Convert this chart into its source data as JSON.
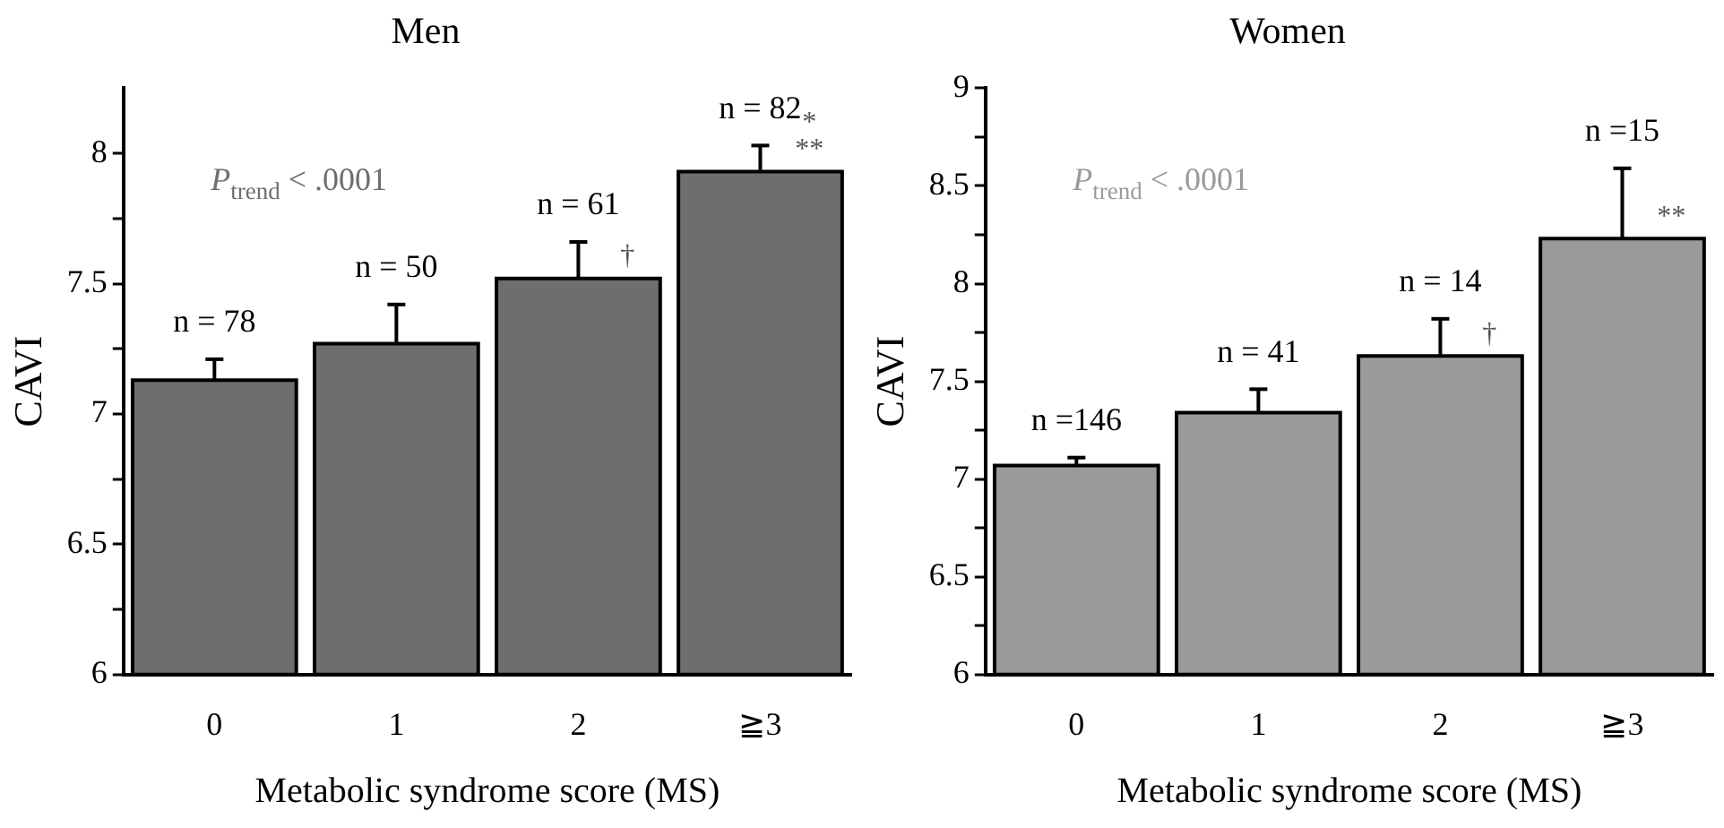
{
  "chart_data": [
    {
      "type": "bar",
      "title": "Men",
      "xlabel": "Metabolic syndrome score (MS)",
      "ylabel": "CAVI",
      "categories": [
        "0",
        "1",
        "2",
        "≧3"
      ],
      "values": [
        7.13,
        7.27,
        7.52,
        7.93
      ],
      "errors": [
        [
          7.13,
          7.21
        ],
        [
          7.27,
          7.42
        ],
        [
          7.52,
          7.66
        ],
        [
          7.93,
          8.03
        ]
      ],
      "color": "#6e6e6e",
      "ylim": [
        6,
        8.25
      ],
      "yticks": [
        6,
        {
          "value": 6.25,
          "label": null
        },
        6.5,
        {
          "value": 6.75,
          "label": null
        },
        7,
        {
          "value": 7.25,
          "label": null
        },
        7.5,
        {
          "value": 7.75,
          "label": null
        },
        8
      ],
      "grid": false,
      "legend": false,
      "annotations": [
        "P$_{trend}$ < .0001",
        {
          "text": "n = 78",
          "x": "0",
          "y": 7.13
        },
        {
          "text": "n = 50",
          "x": "1",
          "y": 7.27
        },
        {
          "text": "n = 61",
          "x": "2",
          "y": 7.52
        },
        {
          "text": "†",
          "x": "2",
          "y": 7.52
        },
        {
          "text": "n = 82",
          "x": "≧3",
          "y": 7.93
        },
        {
          "text": "*",
          "x": "≧3",
          "y": 7.93
        },
        {
          "text": "**",
          "x": "≧3",
          "y": 7.93
        }
      ]
    },
    {
      "type": "bar",
      "title": "Women",
      "xlabel": "Metabolic syndrome score (MS)",
      "ylabel": "CAVI",
      "categories": [
        "0",
        "1",
        "2",
        "≧3"
      ],
      "values": [
        7.07,
        7.34,
        7.63,
        8.23
      ],
      "errors": [
        [
          7.07,
          7.11
        ],
        [
          7.34,
          7.46
        ],
        [
          7.63,
          7.82
        ],
        [
          8.23,
          8.59
        ]
      ],
      "color": "#9a9a9a",
      "ylim": [
        6,
        9
      ],
      "yticks": [
        6,
        {
          "value": 6.25,
          "label": null
        },
        6.5,
        {
          "value": 6.75,
          "label": null
        },
        7,
        {
          "value": 7.25,
          "label": null
        },
        7.5,
        {
          "value": 7.75,
          "label": null
        },
        8,
        {
          "value": 8.25,
          "label": null
        },
        8.5,
        {
          "value": 8.75,
          "label": null
        },
        9
      ],
      "grid": false,
      "legend": false,
      "annotations": [
        "P$_{trend}$ < .0001",
        {
          "text": "n =146",
          "x": "0",
          "y": 7.07
        },
        {
          "text": "n = 41",
          "x": "1",
          "y": 7.34
        },
        {
          "text": "n = 14",
          "x": "2",
          "y": 7.63
        },
        {
          "text": "†",
          "x": "2",
          "y": 7.63
        },
        {
          "text": "n =15",
          "x": "≧3",
          "y": 8.23
        },
        {
          "text": "**",
          "x": "≧3",
          "y": 8.23
        }
      ]
    }
  ]
}
